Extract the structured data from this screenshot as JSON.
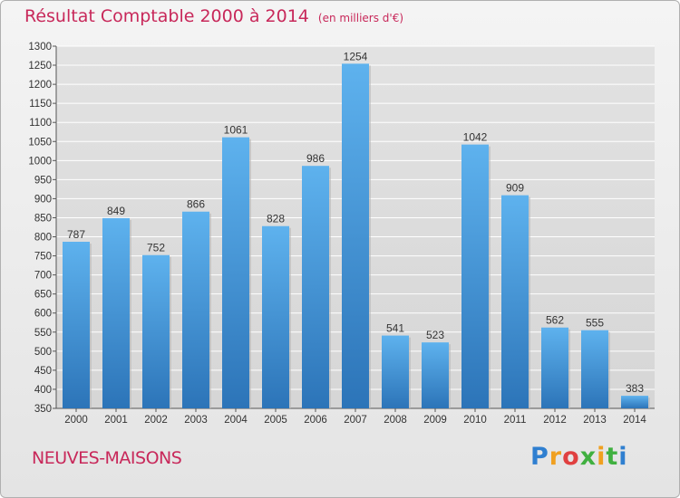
{
  "header": {
    "title": "Résultat Comptable 2000 à 2014",
    "subtitle": "(en milliers d'€)"
  },
  "footer": {
    "city": "NEUVES-MAISONS",
    "brand": "Proxiti"
  },
  "colors": {
    "title": "#c8285a",
    "bar_top": "#5aaeea",
    "bar_bottom": "#2f78bd",
    "grid": "#ffffff",
    "background": "#e8e8e8"
  },
  "chart_data": {
    "type": "bar",
    "title": "Résultat Comptable 2000 à 2014",
    "subtitle": "(en milliers d'€)",
    "xlabel": "",
    "ylabel": "",
    "categories": [
      "2000",
      "2001",
      "2002",
      "2003",
      "2004",
      "2005",
      "2006",
      "2007",
      "2008",
      "2009",
      "2010",
      "2011",
      "2012",
      "2013",
      "2014"
    ],
    "values": [
      787,
      849,
      752,
      866,
      1061,
      828,
      986,
      1254,
      541,
      523,
      1042,
      909,
      562,
      555,
      383
    ],
    "ylim": [
      350,
      1300
    ],
    "yticks": [
      350,
      400,
      450,
      500,
      550,
      600,
      650,
      700,
      750,
      800,
      850,
      900,
      950,
      1000,
      1050,
      1100,
      1150,
      1200,
      1250,
      1300
    ],
    "grid": true,
    "data_labels": true
  }
}
